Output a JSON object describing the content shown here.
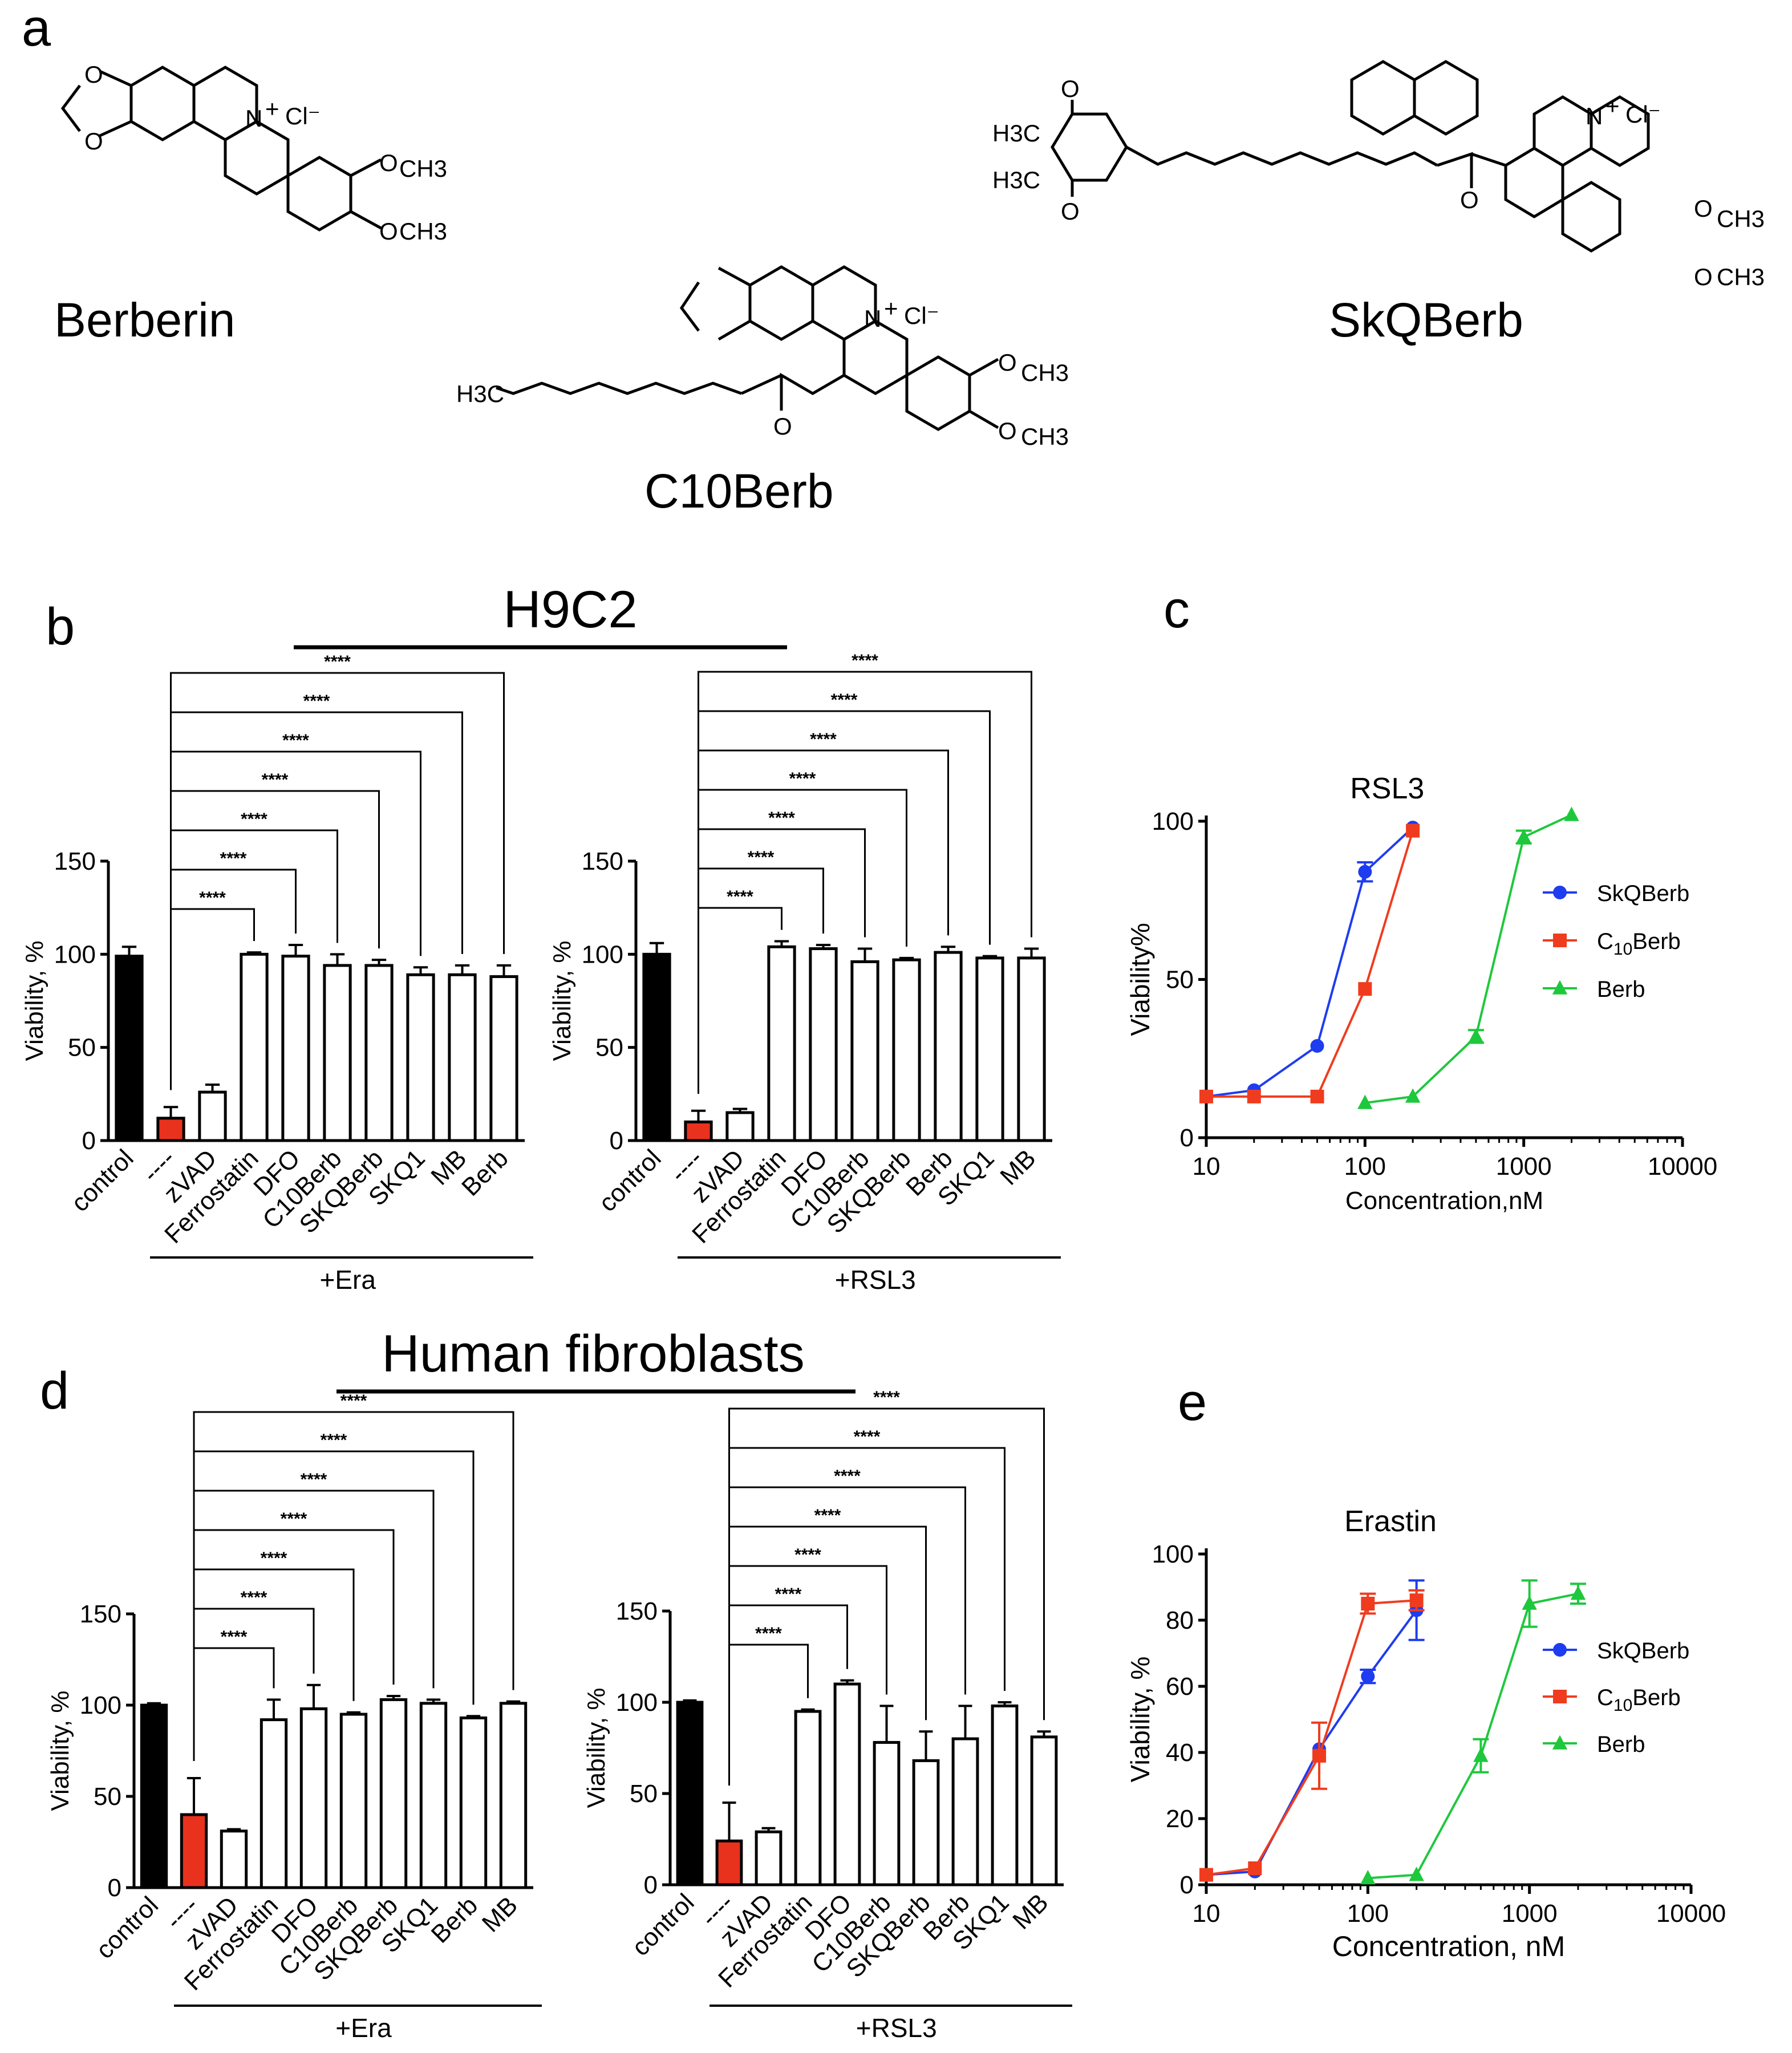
{
  "panel_labels": [
    "a",
    "b",
    "c",
    "d",
    "e"
  ],
  "structures": {
    "berberin": {
      "name": "Berberin",
      "counter_ion": "Cl⁻",
      "methoxy": "CH3"
    },
    "c10berb": {
      "name": "C10Berb",
      "counter_ion": "Cl⁻",
      "chain_terminus": "H3C"
    },
    "skqberb": {
      "name": "SkQBerb",
      "counter_ion": "Cl⁻",
      "quinone_methyl": "H3C"
    }
  },
  "section_titles": {
    "h9c2": "H9C2",
    "fibroblasts": "Human fibroblasts"
  },
  "significance": "****",
  "chart_data": [
    {
      "id": "b_era",
      "type": "bar",
      "ylabel": "Viability, %",
      "ylim": [
        0,
        150
      ],
      "yticks": [
        "0",
        "50",
        "100",
        "150"
      ],
      "treatment": "+Era",
      "categories": [
        "control",
        "----",
        "zVAD",
        "Ferrostatin",
        "DFO",
        "C10Berb",
        "SKQBerb",
        "SKQ1",
        "MB",
        "Berb"
      ],
      "values": [
        99,
        12,
        26,
        100,
        99,
        94,
        94,
        89,
        89,
        88
      ],
      "errors": [
        5,
        6,
        4,
        1,
        6,
        6,
        3,
        4,
        5,
        6
      ],
      "fills": [
        "#000000",
        "#e8321e",
        "#ffffff",
        "#ffffff",
        "#ffffff",
        "#ffffff",
        "#ffffff",
        "#ffffff",
        "#ffffff",
        "#ffffff"
      ],
      "comparisons": [
        3,
        4,
        5,
        6,
        7,
        8,
        9
      ]
    },
    {
      "id": "b_rsl3",
      "type": "bar",
      "ylabel": "Viability, %",
      "ylim": [
        0,
        150
      ],
      "yticks": [
        "0",
        "50",
        "100",
        "150"
      ],
      "treatment": "+RSL3",
      "categories": [
        "control",
        "----",
        "zVAD",
        "Ferrostatin",
        "DFO",
        "C10Berb",
        "SKQBerb",
        "Berb",
        "SKQ1",
        "MB"
      ],
      "values": [
        100,
        10,
        15,
        104,
        103,
        96,
        97,
        101,
        98,
        98
      ],
      "errors": [
        6,
        6,
        2,
        3,
        2,
        7,
        1,
        3,
        1,
        5
      ],
      "fills": [
        "#000000",
        "#e8321e",
        "#ffffff",
        "#ffffff",
        "#ffffff",
        "#ffffff",
        "#ffffff",
        "#ffffff",
        "#ffffff",
        "#ffffff"
      ],
      "comparisons": [
        3,
        4,
        5,
        6,
        7,
        8,
        9
      ]
    },
    {
      "id": "c_rsl3",
      "type": "line",
      "title": "RSL3",
      "xscale": "log",
      "xlabel": "Concentration,nM",
      "ylabel": "Viability%",
      "xlim": [
        10,
        10000
      ],
      "ylim": [
        0,
        100
      ],
      "xticks": [
        "10",
        "100",
        "1000",
        "10000"
      ],
      "yticks": [
        "0",
        "50",
        "100"
      ],
      "series": [
        {
          "name": "SkQBerb",
          "color": "#1e3cf0",
          "marker": "circle",
          "x": [
            10,
            20,
            50,
            100,
            200
          ],
          "y": [
            13,
            15,
            29,
            84,
            98
          ],
          "err": [
            0,
            0,
            0,
            3,
            0
          ]
        },
        {
          "name": "C10Berb",
          "color": "#f03c1e",
          "marker": "square",
          "x": [
            10,
            20,
            50,
            100,
            200
          ],
          "y": [
            13,
            13,
            13,
            47,
            97
          ],
          "err": [
            0,
            0,
            0,
            0,
            0
          ]
        },
        {
          "name": "Berb",
          "color": "#1ec83c",
          "marker": "triangle",
          "x": [
            100,
            200,
            500,
            1000,
            2000
          ],
          "y": [
            11,
            13,
            32,
            95,
            102
          ],
          "err": [
            0,
            0,
            2,
            2,
            0
          ]
        }
      ]
    },
    {
      "id": "d_era",
      "type": "bar",
      "ylabel": "Viability, %",
      "ylim": [
        0,
        150
      ],
      "yticks": [
        "0",
        "50",
        "100",
        "150"
      ],
      "treatment": "+Era",
      "categories": [
        "control",
        "----",
        "zVAD",
        "Ferrostatin",
        "DFO",
        "C10Berb",
        "SKQBerb",
        "SKQ1",
        "Berb",
        "MB"
      ],
      "values": [
        100,
        40,
        31,
        92,
        98,
        95,
        103,
        101,
        93,
        101
      ],
      "errors": [
        1,
        20,
        1,
        11,
        13,
        1,
        2,
        2,
        1,
        1
      ],
      "fills": [
        "#000000",
        "#e8321e",
        "#ffffff",
        "#ffffff",
        "#ffffff",
        "#ffffff",
        "#ffffff",
        "#ffffff",
        "#ffffff",
        "#ffffff"
      ],
      "comparisons": [
        3,
        4,
        5,
        6,
        7,
        8,
        9
      ]
    },
    {
      "id": "d_rsl3",
      "type": "bar",
      "ylabel": "Viability, %",
      "ylim": [
        0,
        150
      ],
      "yticks": [
        "0",
        "50",
        "100",
        "150"
      ],
      "treatment": "+RSL3",
      "categories": [
        "control",
        "----",
        "zVAD",
        "Ferrostatin",
        "DFO",
        "C10Berb",
        "SKQBerb",
        "Berb",
        "SKQ1",
        "MB"
      ],
      "values": [
        100,
        24,
        29,
        95,
        110,
        78,
        68,
        80,
        98,
        81
      ],
      "errors": [
        1,
        21,
        2,
        1,
        2,
        20,
        16,
        18,
        2,
        3
      ],
      "fills": [
        "#000000",
        "#e8321e",
        "#ffffff",
        "#ffffff",
        "#ffffff",
        "#ffffff",
        "#ffffff",
        "#ffffff",
        "#ffffff",
        "#ffffff"
      ],
      "comparisons": [
        3,
        4,
        5,
        6,
        7,
        8,
        9
      ]
    },
    {
      "id": "e_erastin",
      "type": "line",
      "title": "Erastin",
      "xscale": "log",
      "xlabel": "Concentration, nM",
      "ylabel": "Viability, %",
      "xlim": [
        10,
        10000
      ],
      "ylim": [
        0,
        100
      ],
      "xticks": [
        "10",
        "100",
        "1000",
        "10000"
      ],
      "yticks": [
        "0",
        "20",
        "40",
        "60",
        "80",
        "100"
      ],
      "series": [
        {
          "name": "SkQBerb",
          "color": "#1e3cf0",
          "marker": "circle",
          "x": [
            10,
            20,
            50,
            100,
            200
          ],
          "y": [
            3,
            4,
            41,
            63,
            83
          ],
          "err": [
            0,
            0,
            0,
            2,
            9
          ]
        },
        {
          "name": "C10Berb",
          "color": "#f03c1e",
          "marker": "square",
          "x": [
            10,
            20,
            50,
            100,
            200
          ],
          "y": [
            3,
            5,
            39,
            85,
            86
          ],
          "err": [
            0,
            0,
            10,
            3,
            3
          ]
        },
        {
          "name": "Berb",
          "color": "#1ec83c",
          "marker": "triangle",
          "x": [
            100,
            200,
            500,
            1000,
            2000
          ],
          "y": [
            2,
            3,
            39,
            85,
            88
          ],
          "err": [
            0,
            0,
            5,
            7,
            3
          ]
        }
      ]
    }
  ]
}
